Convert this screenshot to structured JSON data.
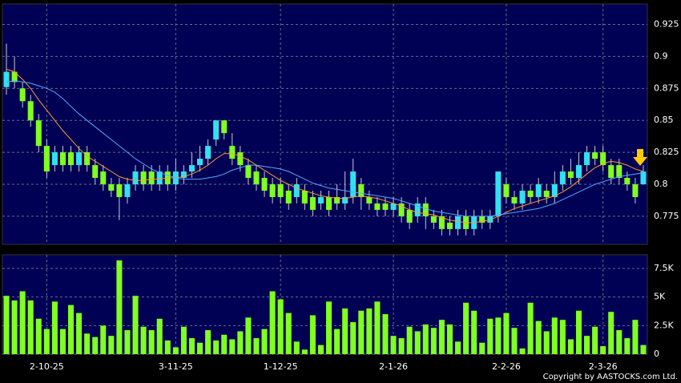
{
  "copyright": "Copyright by AASTOCKS.com Ltd.",
  "chart_data": [
    {
      "type": "candlestick",
      "categories": [
        null,
        null,
        null,
        null,
        null,
        "2-10-25",
        null,
        null,
        null,
        null,
        null,
        null,
        null,
        null,
        null,
        null,
        null,
        null,
        null,
        null,
        null,
        "3-11-25",
        null,
        null,
        null,
        null,
        null,
        null,
        null,
        null,
        null,
        null,
        null,
        null,
        "1-12-25",
        null,
        null,
        null,
        null,
        null,
        null,
        null,
        null,
        null,
        null,
        null,
        null,
        null,
        "2-1-26",
        null,
        null,
        null,
        null,
        null,
        null,
        null,
        null,
        null,
        null,
        null,
        null,
        null,
        "2-2-26",
        null,
        null,
        null,
        null,
        null,
        null,
        null,
        null,
        null,
        null,
        null,
        "2-3-26",
        null,
        null,
        null,
        null,
        null
      ],
      "open": [
        0.876,
        0.888,
        0.875,
        0.865,
        0.85,
        0.83,
        0.815,
        0.825,
        0.825,
        0.815,
        0.825,
        0.815,
        0.81,
        0.8,
        0.8,
        0.79,
        0.8,
        0.81,
        0.81,
        0.8,
        0.81,
        0.8,
        0.805,
        0.81,
        0.815,
        0.82,
        0.835,
        0.85,
        0.83,
        0.825,
        0.815,
        0.81,
        0.805,
        0.8,
        0.8,
        0.795,
        0.79,
        0.795,
        0.79,
        0.785,
        0.79,
        0.79,
        0.785,
        0.79,
        0.8,
        0.79,
        0.785,
        0.785,
        0.78,
        0.785,
        0.78,
        0.775,
        0.785,
        0.775,
        0.775,
        0.77,
        0.765,
        0.775,
        0.765,
        0.775,
        0.77,
        0.775,
        0.8,
        0.79,
        0.785,
        0.795,
        0.79,
        0.795,
        0.79,
        0.8,
        0.81,
        0.805,
        0.815,
        0.825,
        0.825,
        0.815,
        0.815,
        0.805,
        0.8,
        0.8
      ],
      "high": [
        0.91,
        0.9,
        0.88,
        0.87,
        0.855,
        0.835,
        0.83,
        0.83,
        0.83,
        0.83,
        0.83,
        0.82,
        0.815,
        0.805,
        0.805,
        0.805,
        0.815,
        0.815,
        0.815,
        0.815,
        0.815,
        0.82,
        0.815,
        0.825,
        0.83,
        0.835,
        0.85,
        0.85,
        0.84,
        0.83,
        0.82,
        0.815,
        0.81,
        0.805,
        0.805,
        0.8,
        0.805,
        0.8,
        0.795,
        0.795,
        0.795,
        0.8,
        0.81,
        0.82,
        0.805,
        0.795,
        0.79,
        0.79,
        0.79,
        0.79,
        0.785,
        0.79,
        0.79,
        0.78,
        0.78,
        0.775,
        0.78,
        0.78,
        0.78,
        0.78,
        0.78,
        0.81,
        0.805,
        0.795,
        0.8,
        0.8,
        0.805,
        0.8,
        0.81,
        0.815,
        0.82,
        0.825,
        0.83,
        0.83,
        0.83,
        0.82,
        0.82,
        0.81,
        0.805,
        0.815
      ],
      "low": [
        0.87,
        0.875,
        0.86,
        0.845,
        0.825,
        0.805,
        0.81,
        0.81,
        0.81,
        0.81,
        0.81,
        0.8,
        0.795,
        0.79,
        0.772,
        0.785,
        0.795,
        0.795,
        0.795,
        0.795,
        0.795,
        0.795,
        0.8,
        0.805,
        0.81,
        0.815,
        0.83,
        0.835,
        0.815,
        0.81,
        0.8,
        0.795,
        0.79,
        0.785,
        0.785,
        0.78,
        0.785,
        0.78,
        0.775,
        0.78,
        0.775,
        0.78,
        0.78,
        0.785,
        0.78,
        0.78,
        0.775,
        0.775,
        0.775,
        0.77,
        0.765,
        0.77,
        0.765,
        0.765,
        0.76,
        0.76,
        0.76,
        0.76,
        0.76,
        0.765,
        0.765,
        0.77,
        0.785,
        0.78,
        0.78,
        0.785,
        0.785,
        0.785,
        0.785,
        0.795,
        0.8,
        0.8,
        0.81,
        0.815,
        0.81,
        0.8,
        0.8,
        0.795,
        0.785,
        0.8
      ],
      "close": [
        0.888,
        0.88,
        0.865,
        0.85,
        0.83,
        0.81,
        0.825,
        0.815,
        0.815,
        0.825,
        0.815,
        0.805,
        0.8,
        0.795,
        0.79,
        0.8,
        0.81,
        0.8,
        0.8,
        0.81,
        0.8,
        0.81,
        0.81,
        0.815,
        0.82,
        0.83,
        0.85,
        0.84,
        0.82,
        0.815,
        0.805,
        0.8,
        0.795,
        0.79,
        0.79,
        0.785,
        0.8,
        0.785,
        0.78,
        0.79,
        0.78,
        0.785,
        0.79,
        0.81,
        0.79,
        0.785,
        0.78,
        0.78,
        0.785,
        0.775,
        0.77,
        0.785,
        0.775,
        0.77,
        0.765,
        0.765,
        0.775,
        0.765,
        0.775,
        0.77,
        0.775,
        0.81,
        0.79,
        0.785,
        0.795,
        0.79,
        0.8,
        0.79,
        0.8,
        0.81,
        0.805,
        0.815,
        0.825,
        0.82,
        0.815,
        0.805,
        0.805,
        0.8,
        0.79,
        0.81
      ],
      "up_color": "#33e0f0",
      "down_color": "#80ff20",
      "lines": [
        {
          "color": "#ff9933",
          "values": [
            0.89,
            0.888,
            0.882,
            0.875,
            0.866,
            0.858,
            0.85,
            0.842,
            0.835,
            0.828,
            0.822,
            0.818,
            0.814,
            0.81,
            0.806,
            0.804,
            0.803,
            0.803,
            0.804,
            0.804,
            0.805,
            0.805,
            0.806,
            0.808,
            0.811,
            0.815,
            0.82,
            0.824,
            0.824,
            0.822,
            0.819,
            0.815,
            0.811,
            0.807,
            0.803,
            0.8,
            0.797,
            0.795,
            0.793,
            0.791,
            0.79,
            0.789,
            0.789,
            0.79,
            0.791,
            0.79,
            0.789,
            0.787,
            0.785,
            0.783,
            0.78,
            0.778,
            0.777,
            0.776,
            0.774,
            0.772,
            0.771,
            0.77,
            0.77,
            0.771,
            0.772,
            0.775,
            0.778,
            0.781,
            0.783,
            0.785,
            0.787,
            0.789,
            0.791,
            0.794,
            0.798,
            0.803,
            0.808,
            0.813,
            0.816,
            0.818,
            0.817,
            0.815,
            0.812,
            0.81
          ]
        },
        {
          "color": "#55aaff",
          "values": [
            0.88,
            0.881,
            0.88,
            0.879,
            0.877,
            0.875,
            0.872,
            0.867,
            0.861,
            0.855,
            0.85,
            0.845,
            0.84,
            0.835,
            0.83,
            0.825,
            0.82,
            0.816,
            0.812,
            0.809,
            0.807,
            0.805,
            0.804,
            0.804,
            0.804,
            0.805,
            0.806,
            0.808,
            0.811,
            0.813,
            0.815,
            0.815,
            0.814,
            0.813,
            0.812,
            0.81,
            0.807,
            0.804,
            0.801,
            0.799,
            0.797,
            0.796,
            0.795,
            0.794,
            0.793,
            0.792,
            0.791,
            0.79,
            0.789,
            0.787,
            0.785,
            0.783,
            0.781,
            0.779,
            0.778,
            0.777,
            0.776,
            0.775,
            0.775,
            0.775,
            0.775,
            0.776,
            0.777,
            0.778,
            0.779,
            0.78,
            0.781,
            0.783,
            0.785,
            0.788,
            0.791,
            0.794,
            0.797,
            0.8,
            0.802,
            0.804,
            0.806,
            0.807,
            0.808,
            0.809
          ]
        }
      ],
      "ylim": [
        0.753,
        0.941
      ],
      "yticks": [
        0.775,
        0.8,
        0.825,
        0.85,
        0.875,
        0.9,
        0.925
      ],
      "grid": true
    },
    {
      "type": "bar",
      "values": [
        5100,
        4700,
        5500,
        4700,
        3100,
        2200,
        4600,
        2200,
        4300,
        3600,
        1800,
        1500,
        2500,
        1600,
        8200,
        2100,
        5100,
        2400,
        2100,
        3100,
        1200,
        600,
        2400,
        1400,
        1000,
        2100,
        1200,
        1700,
        1300,
        2000,
        3200,
        1400,
        2200,
        5500,
        4800,
        3600,
        1100,
        400,
        3400,
        800,
        4600,
        2200,
        4000,
        2800,
        3800,
        4000,
        4600,
        3500,
        1600,
        1400,
        2400,
        2000,
        2600,
        2300,
        3000,
        2600,
        1100,
        4500,
        3800,
        1000,
        3100,
        3200,
        3600,
        2300,
        500,
        4500,
        2900,
        2000,
        3200,
        3000,
        1300,
        3800,
        1600,
        2400,
        700,
        3700,
        2100,
        1400,
        3000,
        800
      ],
      "color": "#80ff20",
      "ylim": [
        0,
        8690
      ],
      "yticks": [
        0,
        {
          "value": 2500,
          "label": "2.5K"
        },
        {
          "value": 5000,
          "label": "5K"
        },
        {
          "value": 7500,
          "label": "7.5K"
        }
      ],
      "grid": true
    }
  ]
}
